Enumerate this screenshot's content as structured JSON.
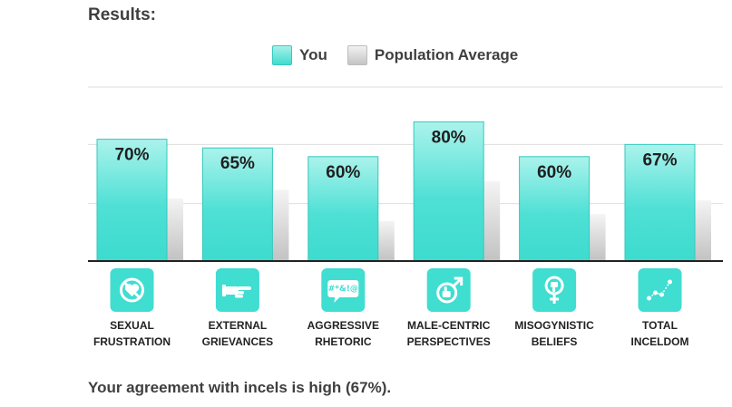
{
  "heading": "Results:",
  "legend": {
    "you": "You",
    "population": "Population Average"
  },
  "summary": "Your agreement with incels is high (67%).",
  "colors": {
    "you": "#40ddd1",
    "population": "#c6c6c6",
    "icon_bg": "#40ddd1"
  },
  "chart_data": {
    "type": "bar",
    "title": "",
    "xlabel": "",
    "ylabel": "",
    "ylim": [
      0,
      100
    ],
    "grid": true,
    "legend_position": "top-center",
    "categories": [
      {
        "line1": "SEXUAL",
        "line2": "FRUSTRATION",
        "icon": "no-heart-icon"
      },
      {
        "line1": "EXTERNAL",
        "line2": "GRIEVANCES",
        "icon": "pointing-hand-icon"
      },
      {
        "line1": "AGGRESSIVE",
        "line2": "RHETORIC",
        "icon": "cursing-speech-bubble-icon"
      },
      {
        "line1": "MALE-CENTRIC",
        "line2": "PERSPECTIVES",
        "icon": "male-thumbs-up-icon"
      },
      {
        "line1": "MISOGYNISTIC",
        "line2": "BELIEFS",
        "icon": "female-thumbs-down-icon"
      },
      {
        "line1": "TOTAL",
        "line2": "INCELDOM",
        "icon": "line-graph-icon"
      }
    ],
    "series": [
      {
        "name": "You",
        "values": [
          70,
          65,
          60,
          80,
          60,
          67
        ],
        "labels": [
          "70%",
          "65%",
          "60%",
          "80%",
          "60%",
          "67%"
        ]
      },
      {
        "name": "Population Average",
        "values": [
          36,
          41,
          23,
          46,
          27,
          35
        ]
      }
    ]
  }
}
